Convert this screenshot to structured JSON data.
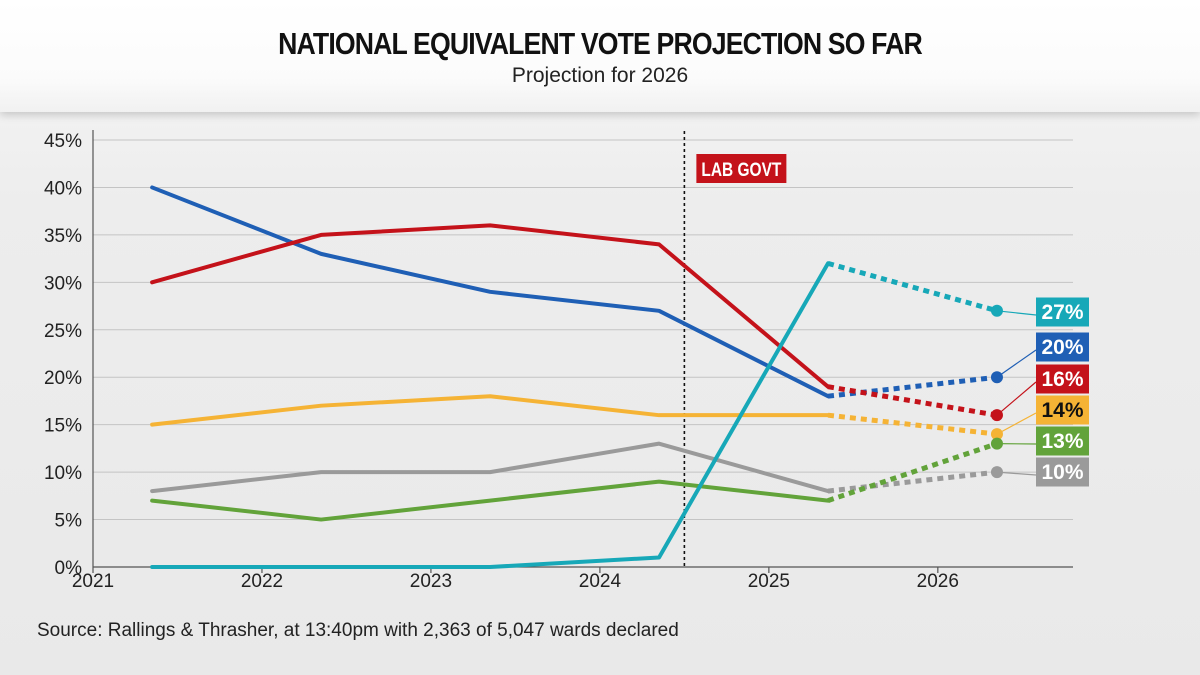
{
  "header": {
    "title": "NATIONAL EQUIVALENT VOTE PROJECTION SO FAR",
    "subtitle": "Projection for 2026"
  },
  "source": "Source: Rallings & Thrasher, at 13:40pm with 2,363 of 5,047 wards declared",
  "chart_data": {
    "type": "line",
    "title": "NATIONAL EQUIVALENT VOTE PROJECTION SO FAR",
    "subtitle": "Projection for 2026",
    "xlabel": "",
    "ylabel": "",
    "xlim": [
      2021,
      2026.8
    ],
    "ylim": [
      0,
      45
    ],
    "x_ticks": [
      "2021",
      "2022",
      "2023",
      "2024",
      "2025",
      "2026"
    ],
    "y_ticks": [
      "0%",
      "5%",
      "10%",
      "15%",
      "20%",
      "25%",
      "30%",
      "35%",
      "40%",
      "45%"
    ],
    "grid": true,
    "annotation": {
      "label": "LAB GOVT",
      "x": 2024.5,
      "color": "#c4121a"
    },
    "series": [
      {
        "color": "#1f5fb5",
        "solid": [
          [
            2021.35,
            40
          ],
          [
            2022.35,
            33
          ],
          [
            2023.35,
            29
          ],
          [
            2024.35,
            27
          ],
          [
            2025.35,
            18
          ]
        ],
        "projected": [
          [
            2025.35,
            18
          ],
          [
            2026.35,
            20
          ]
        ],
        "end_label": "20%"
      },
      {
        "color": "#c4121a",
        "solid": [
          [
            2021.35,
            30
          ],
          [
            2022.35,
            35
          ],
          [
            2023.35,
            36
          ],
          [
            2024.35,
            34
          ],
          [
            2025.35,
            19
          ]
        ],
        "projected": [
          [
            2025.35,
            19
          ],
          [
            2026.35,
            16
          ]
        ],
        "end_label": "16%"
      },
      {
        "color": "#f5b335",
        "solid": [
          [
            2021.35,
            15
          ],
          [
            2022.35,
            17
          ],
          [
            2023.35,
            18
          ],
          [
            2024.35,
            16
          ],
          [
            2025.35,
            16
          ]
        ],
        "projected": [
          [
            2025.35,
            16
          ],
          [
            2026.35,
            14
          ]
        ],
        "end_label": "14%"
      },
      {
        "color": "#9a9a9a",
        "solid": [
          [
            2021.35,
            8
          ],
          [
            2022.35,
            10
          ],
          [
            2023.35,
            10
          ],
          [
            2024.35,
            13
          ],
          [
            2025.35,
            8
          ]
        ],
        "projected": [
          [
            2025.35,
            8
          ],
          [
            2026.35,
            10
          ]
        ],
        "end_label": "10%"
      },
      {
        "color": "#62a33a",
        "solid": [
          [
            2021.35,
            7
          ],
          [
            2022.35,
            5
          ],
          [
            2023.35,
            7
          ],
          [
            2024.35,
            9
          ],
          [
            2025.35,
            7
          ]
        ],
        "projected": [
          [
            2025.35,
            7
          ],
          [
            2026.35,
            13
          ]
        ],
        "end_label": "13%"
      },
      {
        "color": "#17a8b8",
        "solid": [
          [
            2021.35,
            0
          ],
          [
            2022.35,
            0
          ],
          [
            2023.35,
            0
          ],
          [
            2024.35,
            1
          ],
          [
            2025.35,
            32
          ]
        ],
        "projected": [
          [
            2025.35,
            32
          ],
          [
            2026.35,
            27
          ]
        ],
        "end_label": "27%"
      }
    ]
  }
}
